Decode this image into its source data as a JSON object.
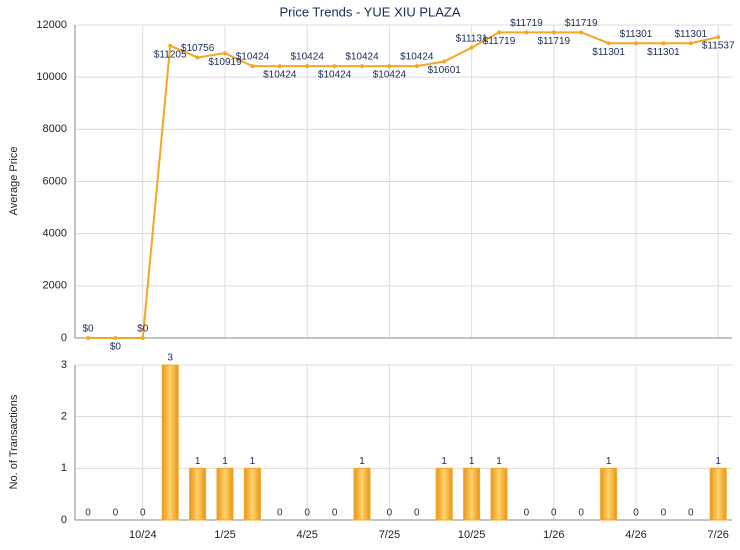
{
  "chart_data": [
    {
      "type": "line",
      "title": "Price Trends - YUE XIU PLAZA",
      "y_label": "Average Price",
      "color": "#f5a623",
      "values": [
        0,
        0,
        0,
        11205,
        10756,
        10919,
        10424,
        10424,
        10424,
        10424,
        10424,
        10424,
        10424,
        10601,
        11131,
        11719,
        11719,
        11719,
        11719,
        11301,
        11301,
        11301,
        11301,
        11537
      ],
      "value_labels": [
        "$0",
        "$0",
        "$0",
        "$11205",
        "$10756",
        "$10919",
        "$10424",
        "$10424",
        "$10424",
        "$10424",
        "$10424",
        "$10424",
        "$10424",
        "$10601",
        "$11131",
        "$11719",
        "$11719",
        "$11719",
        "$11719",
        "$11301",
        "$11301",
        "$11301",
        "$11301",
        "$11537"
      ],
      "ylim": [
        0,
        12000
      ],
      "yticks": [
        0,
        2000,
        4000,
        6000,
        8000,
        10000,
        12000
      ],
      "grid": true
    },
    {
      "type": "bar",
      "y_label": "No. of Transactions",
      "color": "#f5a623",
      "categories": [
        null,
        null,
        "10/24",
        null,
        null,
        "1/25",
        null,
        null,
        "4/25",
        null,
        null,
        "7/25",
        null,
        null,
        "10/25",
        null,
        null,
        "1/26",
        null,
        null,
        "4/26",
        null,
        null,
        "7/26"
      ],
      "values": [
        0,
        0,
        0,
        3,
        1,
        1,
        1,
        0,
        0,
        0,
        1,
        0,
        0,
        1,
        1,
        1,
        0,
        0,
        0,
        1,
        0,
        0,
        0,
        1
      ],
      "ylim": [
        0,
        3
      ],
      "yticks": [
        0,
        1,
        2,
        3
      ],
      "grid": true
    }
  ]
}
